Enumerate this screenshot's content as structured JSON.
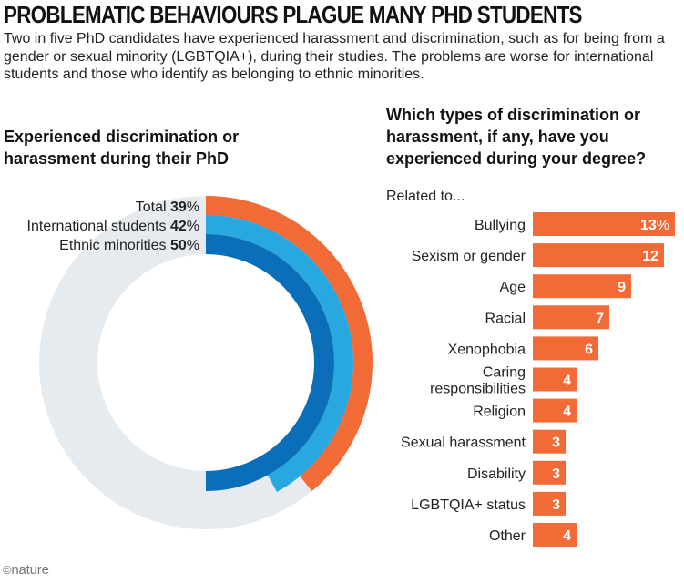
{
  "title": "PROBLEMATIC BEHAVIOURS PLAGUE MANY PHD STUDENTS",
  "subtitle": "Two in five PhD candidates have experienced harassment and discrimination, such as for being from a gender or sexual minority (LGBTQIA+), during their studies. The problems are worse for international students and those who identify as belonging to ethnic minorities.",
  "chart_data": [
    {
      "type": "pie",
      "title": "Experienced discrimination or harassment during their PhD",
      "unit": "%",
      "series": [
        {
          "name": "Total",
          "value": 39,
          "color": "#f26a36"
        },
        {
          "name": "International students",
          "value": 42,
          "color": "#29a8e0"
        },
        {
          "name": "Ethnic minorities",
          "value": 50,
          "color": "#0a6fb8"
        }
      ],
      "track_color": "#e6ebef"
    },
    {
      "type": "bar",
      "title": "Which types of discrimination or harassment, if any, have you experienced during your degree?",
      "subtitle": "Related to...",
      "unit": "%",
      "color": "#f26a36",
      "categories": [
        "Bullying",
        "Sexism or gender",
        "Age",
        "Racial",
        "Xenophobia",
        "Caring responsibilities",
        "Religion",
        "Sexual harassment",
        "Disability",
        "LGBTQIA+ status",
        "Other"
      ],
      "category_lines": [
        [
          "Bullying"
        ],
        [
          "Sexism or gender"
        ],
        [
          "Age"
        ],
        [
          "Racial"
        ],
        [
          "Xenophobia"
        ],
        [
          "Caring",
          "responsibilities"
        ],
        [
          "Religion"
        ],
        [
          "Sexual harassment"
        ],
        [
          "Disability"
        ],
        [
          "LGBTQIA+ status"
        ],
        [
          "Other"
        ]
      ],
      "values": [
        13,
        12,
        9,
        7,
        6,
        4,
        4,
        3,
        3,
        3,
        4
      ]
    }
  ],
  "logo": {
    "symbol": "©",
    "text": "nature"
  }
}
